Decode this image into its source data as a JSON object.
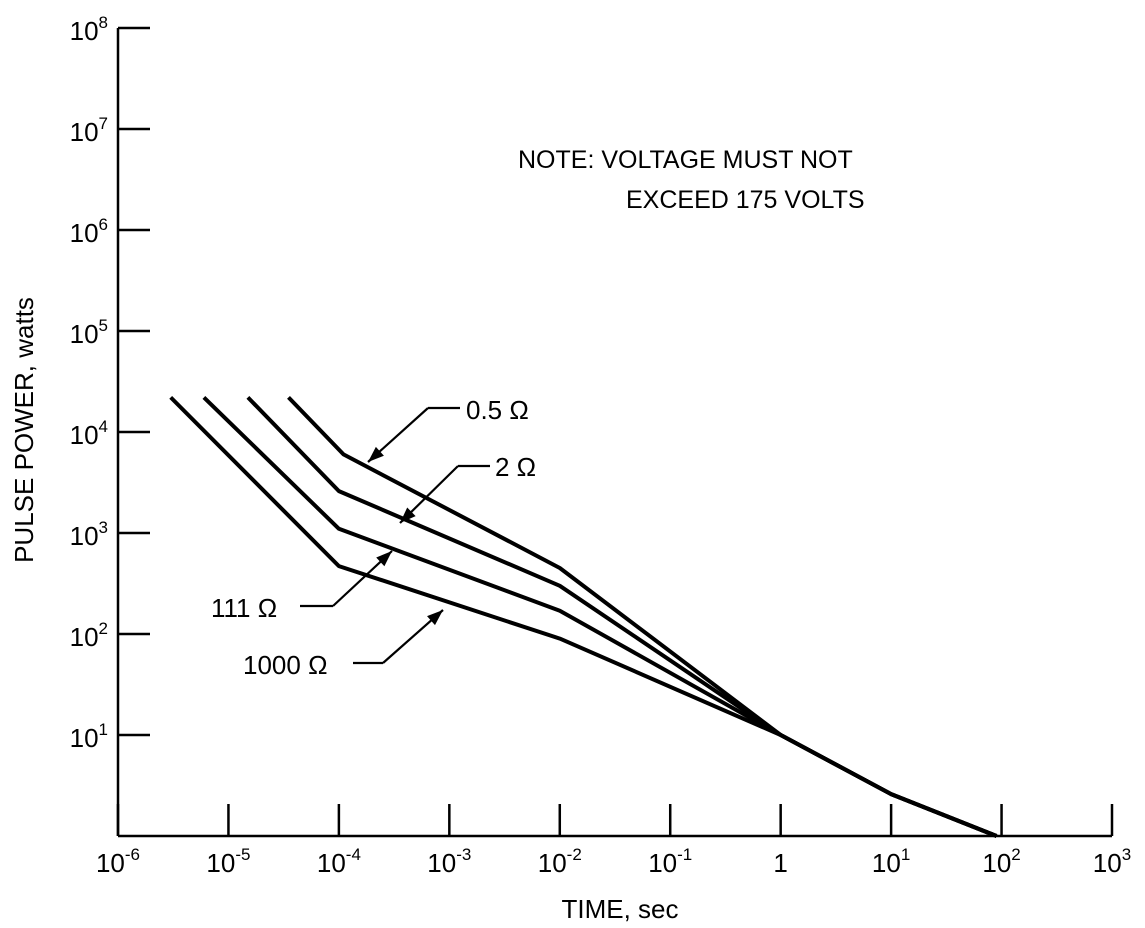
{
  "chart_data": {
    "type": "line",
    "title": "",
    "xlabel": "TIME, sec",
    "ylabel": "PULSE POWER, watts",
    "x_scale": "log",
    "y_scale": "log",
    "xlim": [
      1e-06,
      1000
    ],
    "ylim": [
      1,
      100000000
    ],
    "grid": false,
    "x_ticks": [
      {
        "base": "10",
        "exp": "-6",
        "value": 1e-06
      },
      {
        "base": "10",
        "exp": "-5",
        "value": 1e-05
      },
      {
        "base": "10",
        "exp": "-4",
        "value": 0.0001
      },
      {
        "base": "10",
        "exp": "-3",
        "value": 0.001
      },
      {
        "base": "10",
        "exp": "-2",
        "value": 0.01
      },
      {
        "base": "10",
        "exp": "-1",
        "value": 0.1
      },
      {
        "base": "1",
        "exp": "",
        "value": 1
      },
      {
        "base": "10",
        "exp": "1",
        "value": 10
      },
      {
        "base": "10",
        "exp": "2",
        "value": 100
      },
      {
        "base": "10",
        "exp": "3",
        "value": 1000
      }
    ],
    "y_ticks": [
      {
        "base": "10",
        "exp": "1",
        "value": 10
      },
      {
        "base": "10",
        "exp": "2",
        "value": 100
      },
      {
        "base": "10",
        "exp": "3",
        "value": 1000
      },
      {
        "base": "10",
        "exp": "4",
        "value": 10000
      },
      {
        "base": "10",
        "exp": "5",
        "value": 100000
      },
      {
        "base": "10",
        "exp": "6",
        "value": 1000000
      },
      {
        "base": "10",
        "exp": "7",
        "value": 10000000
      },
      {
        "base": "10",
        "exp": "8",
        "value": 100000000
      }
    ],
    "series": [
      {
        "name": "0.5 Ω",
        "points": [
          [
            3.5e-05,
            22000
          ],
          [
            0.00011,
            6000
          ],
          [
            0.01,
            450
          ],
          [
            1,
            10
          ],
          [
            10,
            2.6
          ],
          [
            90,
            1
          ]
        ]
      },
      {
        "name": "2 Ω",
        "points": [
          [
            1.5e-05,
            22000
          ],
          [
            0.0001,
            2600
          ],
          [
            0.01,
            300
          ],
          [
            1,
            10
          ],
          [
            10,
            2.6
          ],
          [
            90,
            1
          ]
        ]
      },
      {
        "name": "111 Ω",
        "points": [
          [
            6e-06,
            22000
          ],
          [
            0.0001,
            1100
          ],
          [
            0.01,
            170
          ],
          [
            1,
            10
          ],
          [
            10,
            2.6
          ],
          [
            90,
            1
          ]
        ]
      },
      {
        "name": "1000 Ω",
        "points": [
          [
            3e-06,
            22000
          ],
          [
            0.0001,
            470
          ],
          [
            0.01,
            90
          ],
          [
            1,
            10
          ],
          [
            10,
            2.6
          ],
          [
            90,
            1
          ]
        ]
      }
    ],
    "annotations": {
      "note_line1": "NOTE:  VOLTAGE MUST NOT",
      "note_line2": "EXCEED 175 VOLTS"
    }
  }
}
